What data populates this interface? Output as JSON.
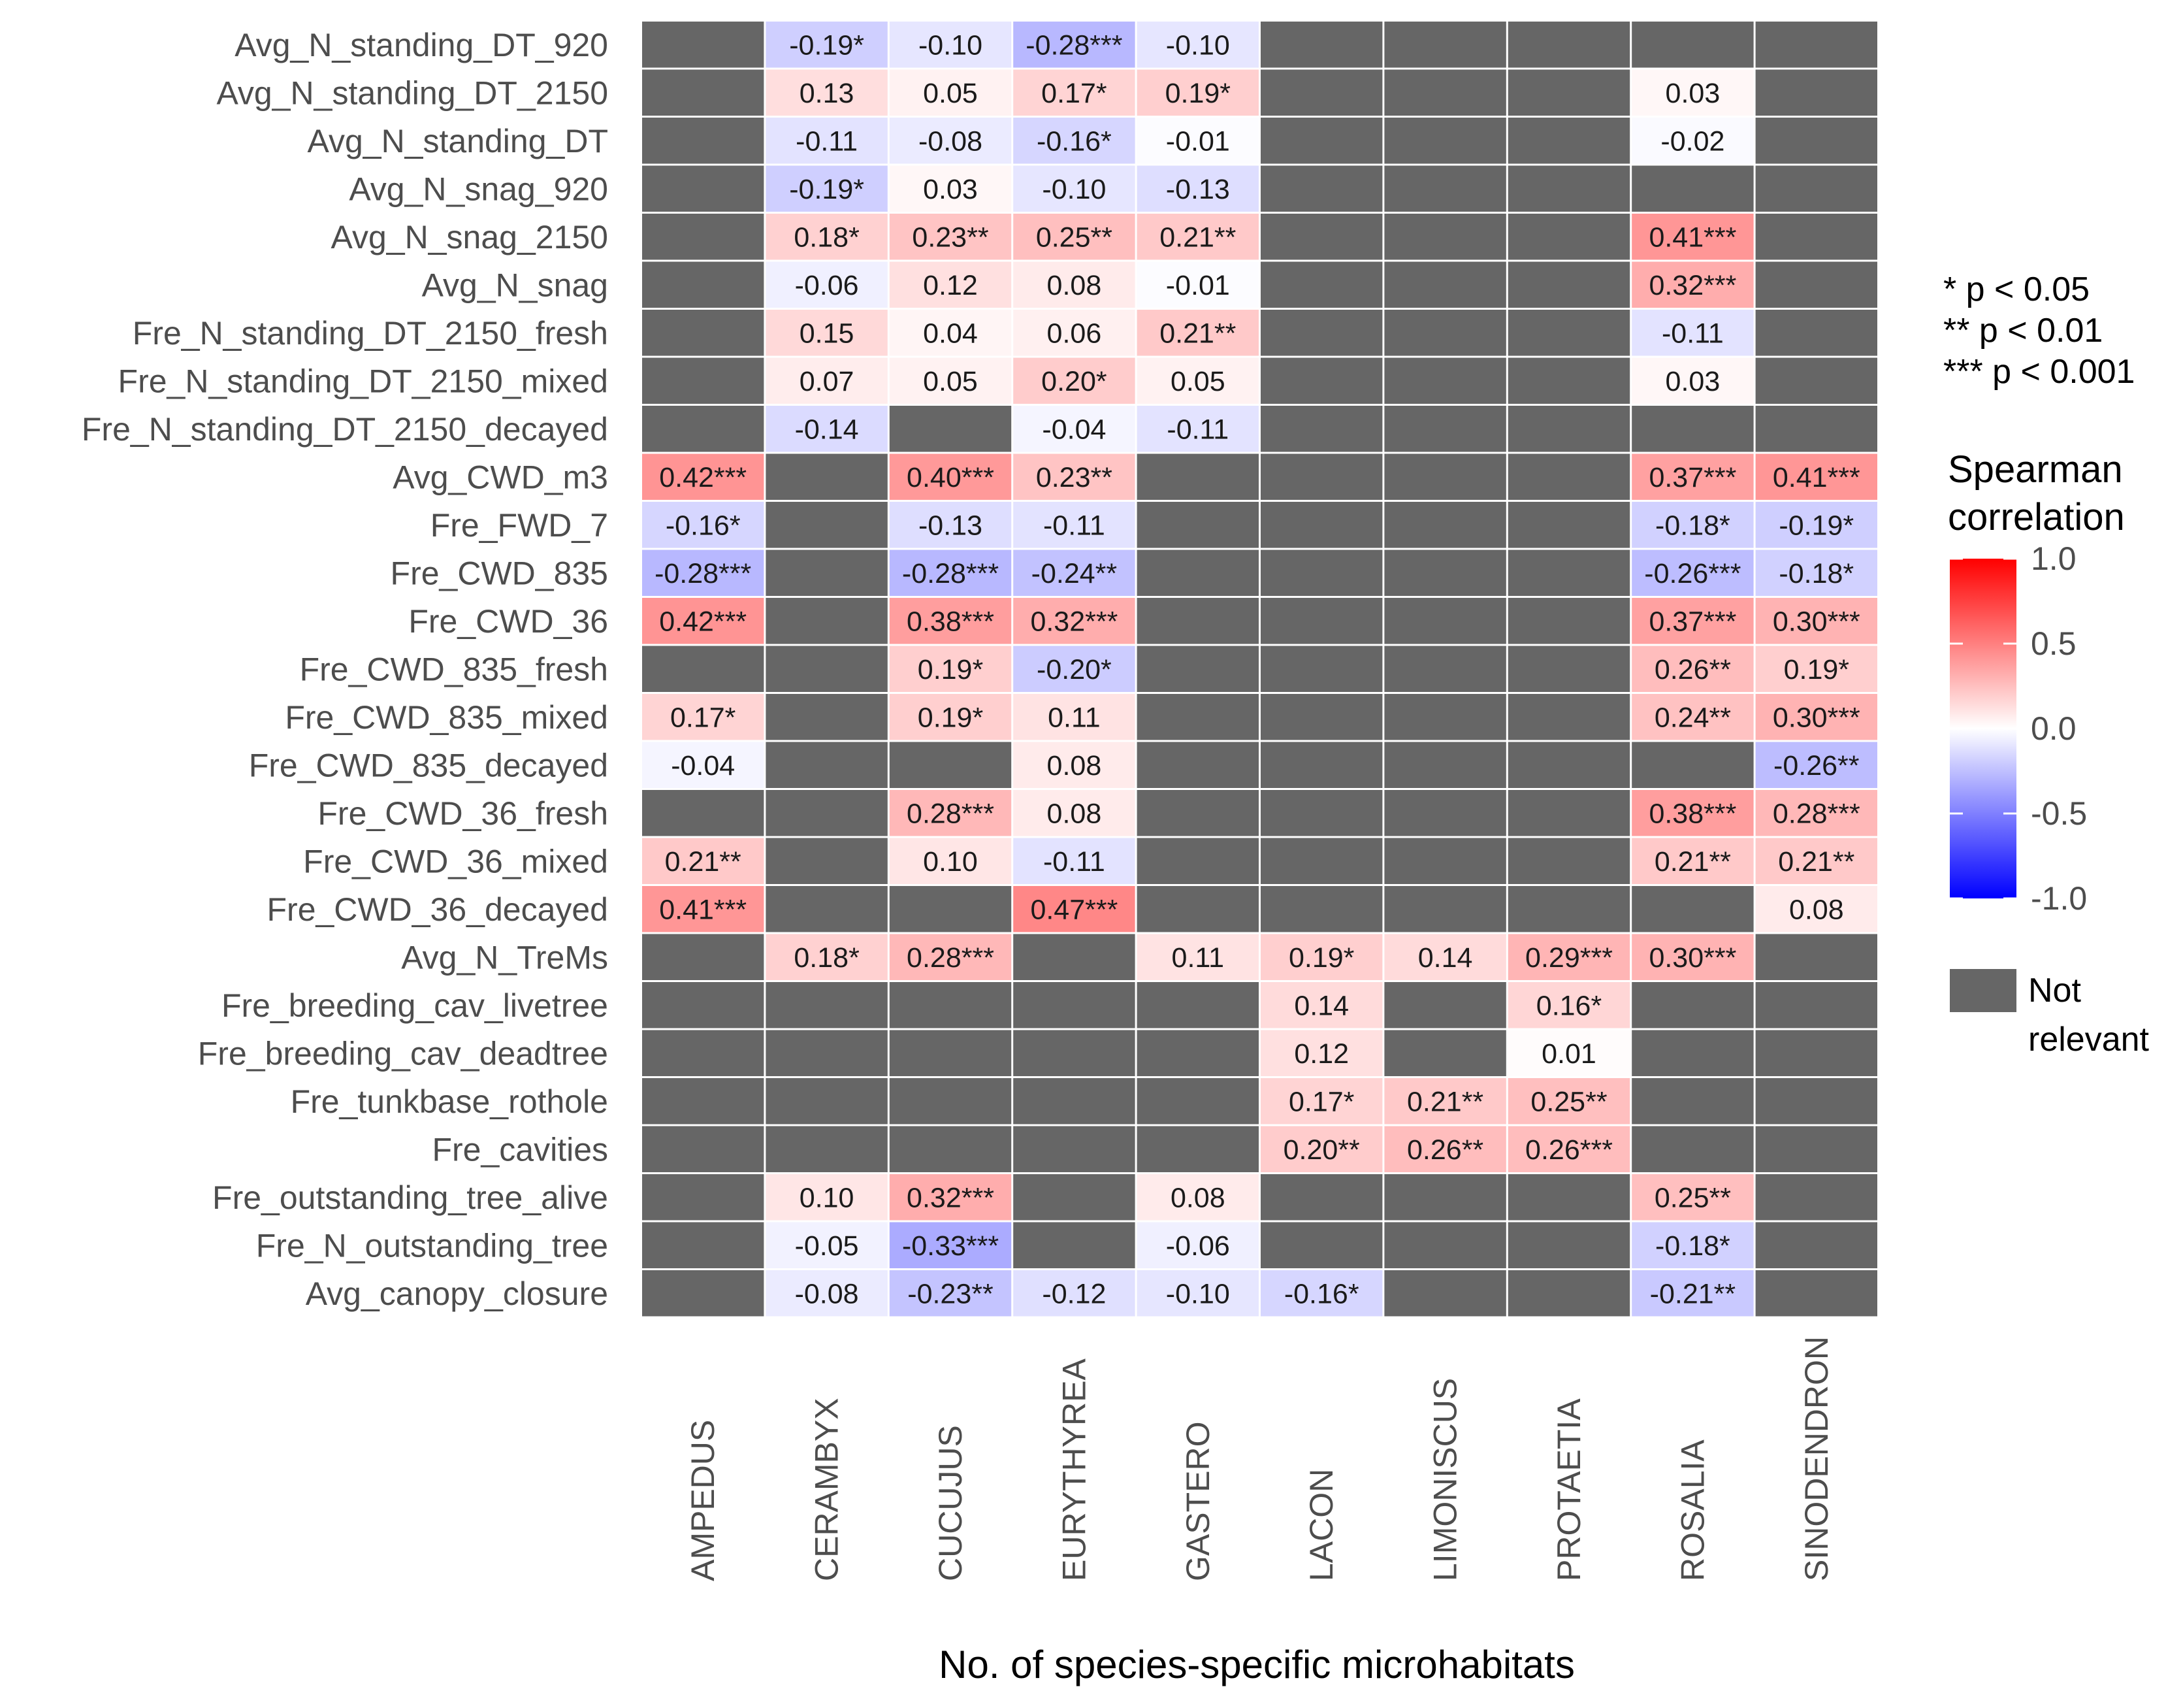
{
  "chart_data": {
    "type": "heatmap",
    "title": "",
    "xlabel": "No. of species-specific microhabitats",
    "ylabel": "",
    "columns": [
      "AMPEDUS",
      "CERAMBYX",
      "CUCUJUS",
      "EURYTHYREA",
      "GASTERO",
      "LACON",
      "LIMONISCUS",
      "PROTAETIA",
      "ROSALIA",
      "SINODENDRON"
    ],
    "rows": [
      "Avg_N_standing_DT_920",
      "Avg_N_standing_DT_2150",
      "Avg_N_standing_DT",
      "Avg_N_snag_920",
      "Avg_N_snag_2150",
      "Avg_N_snag",
      "Fre_N_standing_DT_2150_fresh",
      "Fre_N_standing_DT_2150_mixed",
      "Fre_N_standing_DT_2150_decayed",
      "Avg_CWD_m3",
      "Fre_FWD_7",
      "Fre_CWD_835",
      "Fre_CWD_36",
      "Fre_CWD_835_fresh",
      "Fre_CWD_835_mixed",
      "Fre_CWD_835_decayed",
      "Fre_CWD_36_fresh",
      "Fre_CWD_36_mixed",
      "Fre_CWD_36_decayed",
      "Avg_N_TreMs",
      "Fre_breeding_cav_livetree",
      "Fre_breeding_cav_deadtree",
      "Fre_tunkbase_rothole",
      "Fre_cavities",
      "Fre_outstanding_tree_alive",
      "Fre_N_outstanding_tree",
      "Avg_canopy_closure"
    ],
    "cells": [
      [
        null,
        "-0.19*",
        "-0.10",
        "-0.28***",
        "-0.10",
        null,
        null,
        null,
        null,
        null
      ],
      [
        null,
        "0.13",
        "0.05",
        "0.17*",
        "0.19*",
        null,
        null,
        null,
        "0.03",
        null
      ],
      [
        null,
        "-0.11",
        "-0.08",
        "-0.16*",
        "-0.01",
        null,
        null,
        null,
        "-0.02",
        null
      ],
      [
        null,
        "-0.19*",
        "0.03",
        "-0.10",
        "-0.13",
        null,
        null,
        null,
        null,
        null
      ],
      [
        null,
        "0.18*",
        "0.23**",
        "0.25**",
        "0.21**",
        null,
        null,
        null,
        "0.41***",
        null
      ],
      [
        null,
        "-0.06",
        "0.12",
        "0.08",
        "-0.01",
        null,
        null,
        null,
        "0.32***",
        null
      ],
      [
        null,
        "0.15",
        "0.04",
        "0.06",
        "0.21**",
        null,
        null,
        null,
        "-0.11",
        null
      ],
      [
        null,
        "0.07",
        "0.05",
        "0.20*",
        "0.05",
        null,
        null,
        null,
        "0.03",
        null
      ],
      [
        null,
        "-0.14",
        null,
        "-0.04",
        "-0.11",
        null,
        null,
        null,
        null,
        null
      ],
      [
        "0.42***",
        null,
        "0.40***",
        "0.23**",
        null,
        null,
        null,
        null,
        "0.37***",
        "0.41***"
      ],
      [
        "-0.16*",
        null,
        "-0.13",
        "-0.11",
        null,
        null,
        null,
        null,
        "-0.18*",
        "-0.19*"
      ],
      [
        "-0.28***",
        null,
        "-0.28***",
        "-0.24**",
        null,
        null,
        null,
        null,
        "-0.26***",
        "-0.18*"
      ],
      [
        "0.42***",
        null,
        "0.38***",
        "0.32***",
        null,
        null,
        null,
        null,
        "0.37***",
        "0.30***"
      ],
      [
        null,
        null,
        "0.19*",
        "-0.20*",
        null,
        null,
        null,
        null,
        "0.26**",
        "0.19*"
      ],
      [
        "0.17*",
        null,
        "0.19*",
        "0.11",
        null,
        null,
        null,
        null,
        "0.24**",
        "0.30***"
      ],
      [
        "-0.04",
        null,
        null,
        "0.08",
        null,
        null,
        null,
        null,
        null,
        "-0.26**"
      ],
      [
        null,
        null,
        "0.28***",
        "0.08",
        null,
        null,
        null,
        null,
        "0.38***",
        "0.28***"
      ],
      [
        "0.21**",
        null,
        "0.10",
        "-0.11",
        null,
        null,
        null,
        null,
        "0.21**",
        "0.21**"
      ],
      [
        "0.41***",
        null,
        null,
        "0.47***",
        null,
        null,
        null,
        null,
        null,
        "0.08"
      ],
      [
        null,
        "0.18*",
        "0.28***",
        null,
        "0.11",
        "0.19*",
        "0.14",
        "0.29***",
        "0.30***",
        null
      ],
      [
        null,
        null,
        null,
        null,
        null,
        "0.14",
        null,
        "0.16*",
        null,
        null
      ],
      [
        null,
        null,
        null,
        null,
        null,
        "0.12",
        null,
        "0.01",
        null,
        null
      ],
      [
        null,
        null,
        null,
        null,
        null,
        "0.17*",
        "0.21**",
        "0.25**",
        null,
        null
      ],
      [
        null,
        null,
        null,
        null,
        null,
        "0.20**",
        "0.26**",
        "0.26***",
        null,
        null
      ],
      [
        null,
        "0.10",
        "0.32***",
        null,
        "0.08",
        null,
        null,
        null,
        "0.25**",
        null
      ],
      [
        null,
        "-0.05",
        "-0.33***",
        null,
        "-0.06",
        null,
        null,
        null,
        "-0.18*",
        null
      ],
      [
        null,
        "-0.08",
        "-0.23**",
        "-0.12",
        "-0.10",
        "-0.16*",
        null,
        null,
        "-0.21**",
        null
      ]
    ],
    "color_scale": {
      "low": "#0000ff",
      "mid": "#ffffff",
      "high": "#ff0000",
      "range": [
        -1.0,
        1.0
      ],
      "ticks": [
        "1.0",
        "0.5",
        "0.0",
        "-0.5",
        "-1.0"
      ]
    },
    "na_color": "#666666",
    "legend": {
      "significance": [
        "* p < 0.05",
        "** p < 0.01",
        "*** p < 0.001"
      ],
      "title_lines": [
        "Spearman",
        "correlation"
      ],
      "na_label_lines": [
        "Not",
        "relevant"
      ],
      "placement": "right"
    }
  }
}
